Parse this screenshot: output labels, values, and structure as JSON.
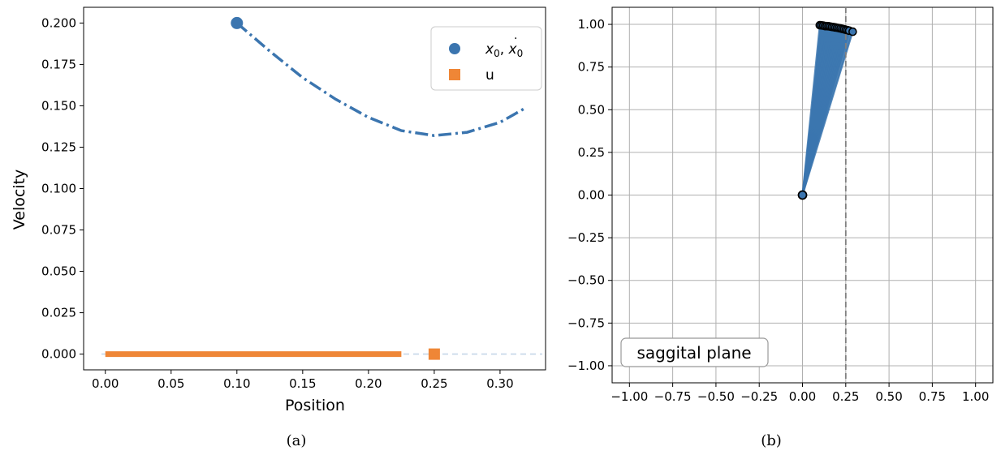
{
  "chart_data": [
    {
      "type": "line",
      "panel_caption": "(a)",
      "xlabel": "Position",
      "ylabel": "Velocity",
      "xlim": [
        -0.0165,
        0.3346
      ],
      "ylim": [
        -0.0095,
        0.2095
      ],
      "xticks": [
        "0.00",
        "0.05",
        "0.10",
        "0.15",
        "0.20",
        "0.25",
        "0.30"
      ],
      "xtick_values": [
        0,
        0.05,
        0.1,
        0.15,
        0.2,
        0.25,
        0.3
      ],
      "yticks": [
        "0.000",
        "0.025",
        "0.050",
        "0.075",
        "0.100",
        "0.125",
        "0.150",
        "0.175",
        "0.200"
      ],
      "ytick_values": [
        0,
        0.025,
        0.05,
        0.075,
        0.1,
        0.125,
        0.15,
        0.175,
        0.2
      ],
      "grid": false,
      "legend_position": "top-right",
      "legend": [
        {
          "label_math": "x0,x0dot",
          "marker": "circle",
          "color": "#3b75af"
        },
        {
          "label": "u",
          "marker": "square",
          "color": "#ef8636"
        }
      ],
      "initial_state": {
        "x": 0.1,
        "y": 0.2
      },
      "trajectory": {
        "style": "dash-dot",
        "color": "#3b75af",
        "points": [
          [
            0.1,
            0.2
          ],
          [
            0.125,
            0.183
          ],
          [
            0.15,
            0.167
          ],
          [
            0.175,
            0.154
          ],
          [
            0.2,
            0.143
          ],
          [
            0.225,
            0.135
          ],
          [
            0.25,
            0.132
          ],
          [
            0.275,
            0.134
          ],
          [
            0.3,
            0.14
          ],
          [
            0.32,
            0.149
          ]
        ]
      },
      "u_bar": {
        "x_start": 0.0,
        "x_end": 0.225,
        "y": 0.0,
        "color": "#ef8636"
      },
      "u_marker": {
        "x": 0.25,
        "y": 0.0
      },
      "guide_line": {
        "y": 0.0,
        "style": "dashed",
        "color": "#c5d6e8"
      }
    },
    {
      "type": "scatter",
      "panel_caption": "(b)",
      "xlim": [
        -1.1,
        1.1
      ],
      "ylim": [
        -1.1,
        1.1
      ],
      "xticks": [
        "−1.00",
        "−0.75",
        "−0.50",
        "−0.25",
        "0.00",
        "0.25",
        "0.50",
        "0.75",
        "1.00"
      ],
      "xtick_values": [
        -1,
        -0.75,
        -0.5,
        -0.25,
        0,
        0.25,
        0.5,
        0.75,
        1
      ],
      "yticks": [
        "−1.00",
        "−0.75",
        "−0.50",
        "−0.25",
        "0.00",
        "0.25",
        "0.50",
        "0.75",
        "1.00"
      ],
      "ytick_values": [
        -1,
        -0.75,
        -0.5,
        -0.25,
        0,
        0.25,
        0.5,
        0.75,
        1
      ],
      "grid": true,
      "text_box": "saggital plane",
      "pivot": {
        "x": 0.0,
        "y": 0.0
      },
      "vertical_line": {
        "x": 0.25,
        "style": "dashed",
        "color": "#7f7f7f"
      },
      "pendulum_color": "#3b75af",
      "tip_points": [
        [
          0.1,
          0.995
        ],
        [
          0.11,
          0.994
        ],
        [
          0.12,
          0.993
        ],
        [
          0.13,
          0.99
        ],
        [
          0.14,
          0.99
        ],
        [
          0.15,
          0.989
        ],
        [
          0.16,
          0.987
        ],
        [
          0.17,
          0.985
        ],
        [
          0.18,
          0.984
        ],
        [
          0.19,
          0.982
        ],
        [
          0.2,
          0.98
        ],
        [
          0.21,
          0.978
        ],
        [
          0.22,
          0.976
        ],
        [
          0.23,
          0.973
        ],
        [
          0.24,
          0.971
        ],
        [
          0.25,
          0.968
        ],
        [
          0.26,
          0.966
        ],
        [
          0.27,
          0.963
        ],
        [
          0.29,
          0.957
        ]
      ]
    }
  ],
  "captions": {
    "left": "(a)",
    "right": "(b)"
  }
}
